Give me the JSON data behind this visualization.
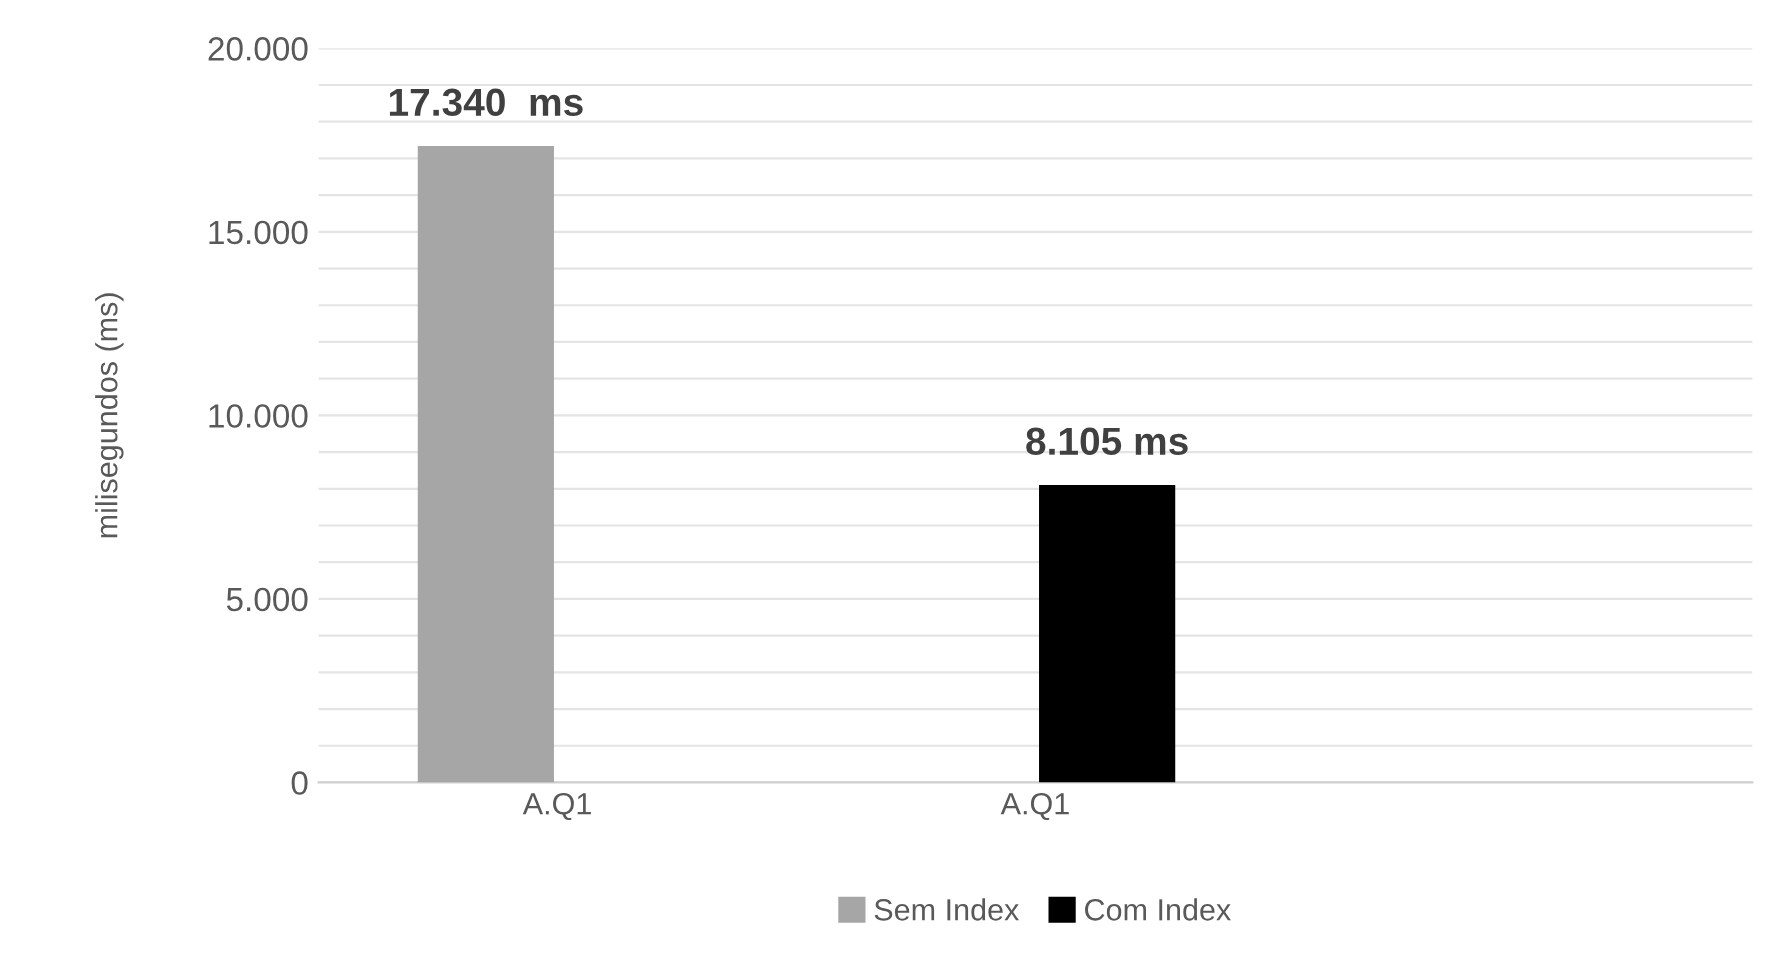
{
  "chart_data": {
    "type": "bar",
    "ylabel": "milisegundos (ms)",
    "categories": [
      "A.Q1",
      "A.Q1",
      null
    ],
    "series": [
      {
        "name": "Sem Index",
        "color": "#a6a6a6",
        "values": [
          17340,
          null,
          null
        ],
        "value_labels": [
          "17.340  ms",
          null,
          null
        ]
      },
      {
        "name": "Com Index",
        "color": "#000000",
        "values": [
          null,
          8105,
          null
        ],
        "value_labels": [
          null,
          "8.105 ms",
          null
        ]
      }
    ],
    "ylim": [
      0,
      20000
    ],
    "yticks": [
      {
        "value": 0,
        "label": "0"
      },
      {
        "value": 1000,
        "label": null
      },
      {
        "value": 2000,
        "label": null
      },
      {
        "value": 3000,
        "label": null
      },
      {
        "value": 4000,
        "label": null
      },
      {
        "value": 5000,
        "label": "5.000"
      },
      {
        "value": 6000,
        "label": null
      },
      {
        "value": 7000,
        "label": null
      },
      {
        "value": 8000,
        "label": null
      },
      {
        "value": 9000,
        "label": null
      },
      {
        "value": 10000,
        "label": "10.000"
      },
      {
        "value": 11000,
        "label": null
      },
      {
        "value": 12000,
        "label": null
      },
      {
        "value": 13000,
        "label": null
      },
      {
        "value": 14000,
        "label": null
      },
      {
        "value": 15000,
        "label": "15.000"
      },
      {
        "value": 16000,
        "label": null
      },
      {
        "value": 17000,
        "label": null
      },
      {
        "value": 18000,
        "label": null
      },
      {
        "value": 19000,
        "label": null
      },
      {
        "value": 20000,
        "label": "20.000"
      }
    ],
    "grid": "y",
    "legend": "bottom"
  }
}
